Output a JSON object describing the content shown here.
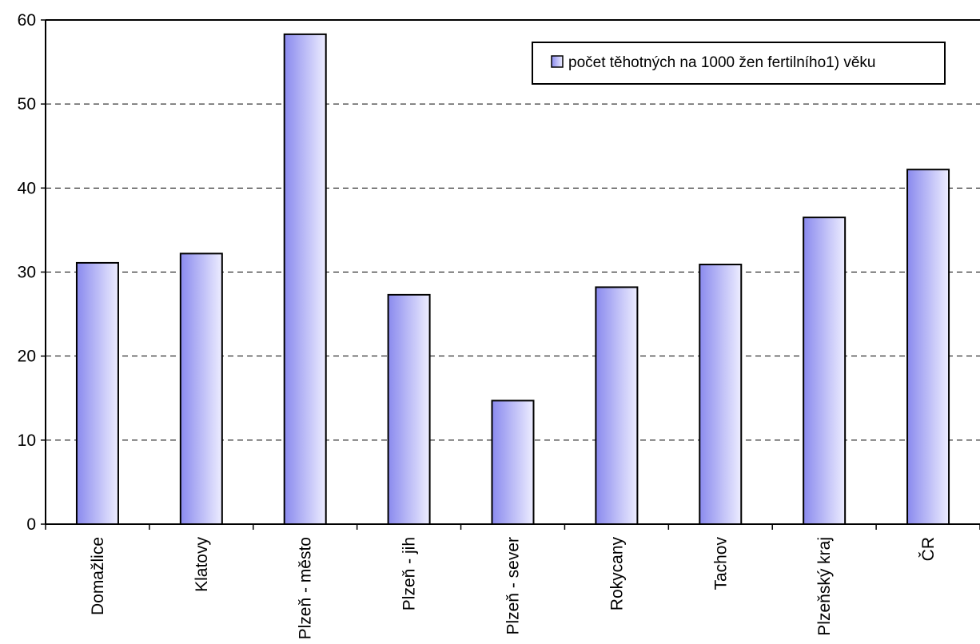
{
  "chart_data": {
    "type": "bar",
    "categories": [
      "Domažlice",
      "Klatovy",
      "Plzeň - město",
      "Plzeň - jih",
      "Plzeň - sever",
      "Rokycany",
      "Tachov",
      "Plzeňský kraj",
      "ČR"
    ],
    "series": [
      {
        "name": "počet těhotných na 1000 žen fertilního1) věku",
        "values": [
          31.1,
          32.2,
          58.3,
          27.3,
          14.7,
          28.2,
          30.9,
          36.5,
          42.2
        ]
      }
    ],
    "ylim": [
      0,
      60
    ],
    "yticks": [
      "0",
      "10",
      "20",
      "30",
      "40",
      "50",
      "60"
    ],
    "grid": "horizontal dashed",
    "legend": "top-right",
    "colors": {
      "bar_left": "#8a8aee",
      "bar_right": "#ededff",
      "bar_stroke": "#000000"
    }
  }
}
